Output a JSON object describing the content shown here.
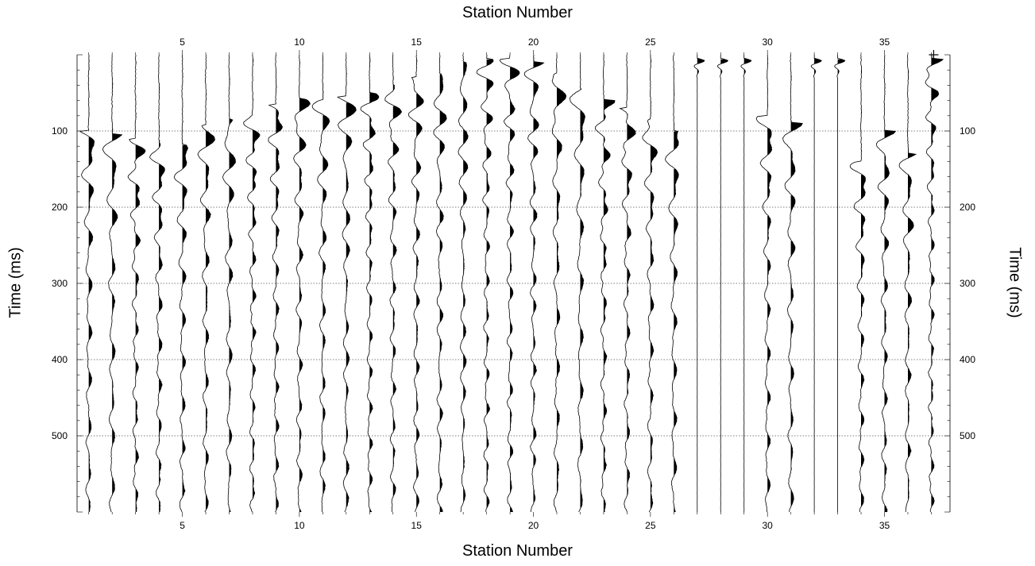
{
  "chart_data": {
    "type": "seismic-wiggle",
    "title_top": "Station Number",
    "title_bottom": "Station Number",
    "xlabel": "Station Number",
    "ylabel": "Time (ms)",
    "x_range": [
      0.5,
      37.8
    ],
    "stations": [
      1,
      2,
      3,
      4,
      5,
      6,
      7,
      8,
      9,
      10,
      11,
      12,
      13,
      14,
      15,
      16,
      17,
      18,
      19,
      20,
      21,
      22,
      23,
      24,
      25,
      26,
      27,
      28,
      29,
      30,
      31,
      32,
      33,
      34,
      35,
      36,
      37
    ],
    "x_ticks": [
      5,
      10,
      15,
      20,
      25,
      30,
      35
    ],
    "y_range": [
      0,
      600
    ],
    "y_ticks": [
      100,
      200,
      300,
      400,
      500
    ],
    "y_grid_lines": [
      100,
      200,
      300,
      400,
      500
    ],
    "y_inverted": true,
    "grid": true,
    "first_breaks_ms": [
      100,
      105,
      110,
      112,
      118,
      92,
      85,
      75,
      65,
      58,
      60,
      55,
      50,
      40,
      30,
      25,
      10,
      5,
      5,
      10,
      25,
      45,
      60,
      70,
      85,
      100,
      5,
      5,
      5,
      80,
      90,
      5,
      5,
      140,
      100,
      130,
      5
    ],
    "dead_stations": [
      27,
      28,
      29,
      32,
      33
    ],
    "fill": "positive-black",
    "line_color": "#000000"
  }
}
